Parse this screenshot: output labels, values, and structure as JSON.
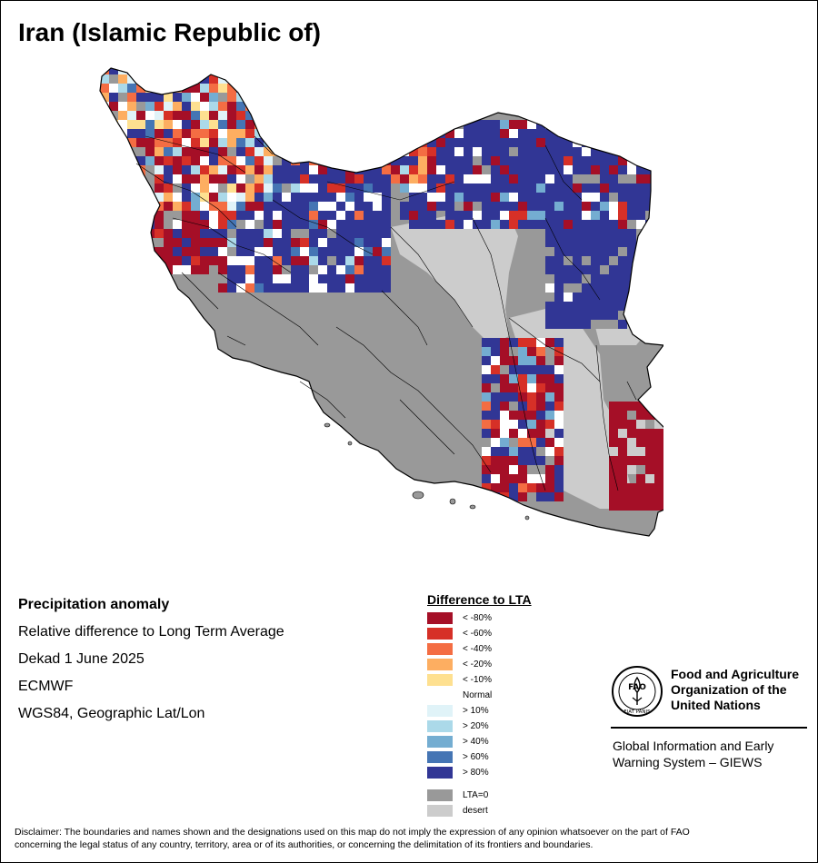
{
  "title": "Iran (Islamic Republic of)",
  "info": {
    "heading": "Precipitation anomaly",
    "description": "Relative difference to Long Term Average",
    "period": "Dekad 1 June 2025",
    "source": "ECMWF",
    "projection": "WGS84, Geographic Lat/Lon"
  },
  "legend": {
    "title": "Difference to LTA",
    "items": [
      {
        "label": "< -80%",
        "color": "#a50f27"
      },
      {
        "label": "< -60%",
        "color": "#d63027"
      },
      {
        "label": "< -40%",
        "color": "#f46d43"
      },
      {
        "label": "< -20%",
        "color": "#fdae61"
      },
      {
        "label": "< -10%",
        "color": "#fee090"
      },
      {
        "label": "Normal",
        "color": "#ffffff"
      },
      {
        "label": "> 10%",
        "color": "#e0f3f8"
      },
      {
        "label": "> 20%",
        "color": "#abd9e9"
      },
      {
        "label": "> 40%",
        "color": "#74add1"
      },
      {
        "label": "> 60%",
        "color": "#4575b4"
      },
      {
        "label": "> 80%",
        "color": "#313695"
      }
    ],
    "extra": [
      {
        "label": "LTA=0",
        "color": "#999999"
      },
      {
        "label": "desert",
        "color": "#cccccc"
      }
    ]
  },
  "organization": {
    "name_lines": [
      "Food and Agriculture",
      "Organization of the",
      "United Nations"
    ],
    "logo_text": "FAO",
    "logo_motto": "FIAT PANIS",
    "system_lines": [
      "Global Information and Early",
      "Warning System – GIEWS"
    ]
  },
  "disclaimer": [
    "Disclaimer: The boundaries and names shown and the designations used on this map do not imply the expression of any opinion whatsoever on the part of FAO",
    "concerning the legal status of any country, territory, area or of its authorities, or concerning the delimitation of its frontiers and boundaries."
  ]
}
